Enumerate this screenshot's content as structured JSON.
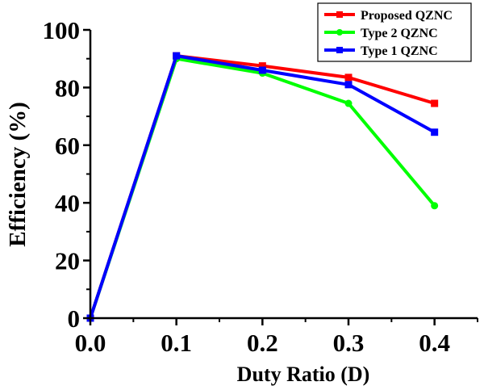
{
  "chart_data": {
    "type": "line",
    "title": "",
    "xlabel": "Duty Ratio (D)",
    "ylabel": "Efficiency (%)",
    "xlim": [
      0.0,
      0.45
    ],
    "ylim": [
      0,
      100
    ],
    "x_ticks": [
      0.0,
      0.1,
      0.2,
      0.3,
      0.4
    ],
    "x_tick_labels": [
      "0.0",
      "0.1",
      "0.2",
      "0.3",
      "0.4"
    ],
    "y_ticks": [
      0,
      20,
      40,
      60,
      80,
      100
    ],
    "y_tick_labels": [
      "0",
      "20",
      "40",
      "60",
      "80",
      "100"
    ],
    "grid": false,
    "legend_position": "top-right",
    "series": [
      {
        "name": "Proposed QZNC",
        "color": "#ff0000",
        "marker": "square",
        "x": [
          0.0,
          0.1,
          0.2,
          0.3,
          0.4
        ],
        "values": [
          0,
          91,
          87.5,
          83.5,
          74.5
        ]
      },
      {
        "name": "Type 2 QZNC",
        "color": "#00ff00",
        "marker": "circle",
        "x": [
          0.0,
          0.1,
          0.2,
          0.3,
          0.4
        ],
        "values": [
          0,
          90,
          85,
          74.5,
          39
        ]
      },
      {
        "name": "Type 1 QZNC",
        "color": "#0000ff",
        "marker": "square",
        "x": [
          0.0,
          0.1,
          0.2,
          0.3,
          0.4
        ],
        "values": [
          0,
          91,
          86,
          81,
          64.5
        ]
      }
    ]
  }
}
